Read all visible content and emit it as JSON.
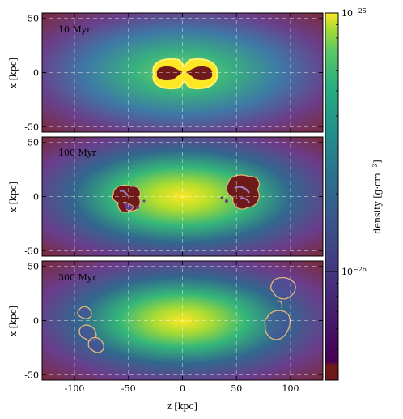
{
  "chart_data": {
    "type": "heatmap",
    "panels": [
      {
        "label": "10 Myr",
        "time_myr": 10
      },
      {
        "label": "100 Myr",
        "time_myr": 100
      },
      {
        "label": "300 Myr",
        "time_myr": 300
      }
    ],
    "xlabel": "z [kpc]",
    "ylabel": "x [kpc]",
    "xlim": [
      -130,
      130
    ],
    "ylim": [
      -55,
      55
    ],
    "xticks": [
      -100,
      -50,
      0,
      50,
      100
    ],
    "xtick_labels": [
      "-100",
      "-50",
      "0",
      "50",
      "100"
    ],
    "yticks": [
      -50,
      0,
      50
    ],
    "ytick_labels": [
      "-50",
      "0",
      "50"
    ],
    "grid": true,
    "colorbar": {
      "label": "density [g·cm",
      "label_exponent": "−3",
      "label_close": "]",
      "scale": "log",
      "range": [
        3.8e-27,
        1e-25
      ],
      "tick_values": [
        1e-25,
        1e-26
      ],
      "tick_labels": [
        {
          "base": "10",
          "exp": "−25"
        },
        {
          "base": "10",
          "exp": "−26"
        }
      ],
      "colormap": "viridis",
      "under_color": "#6f1a1a"
    }
  }
}
